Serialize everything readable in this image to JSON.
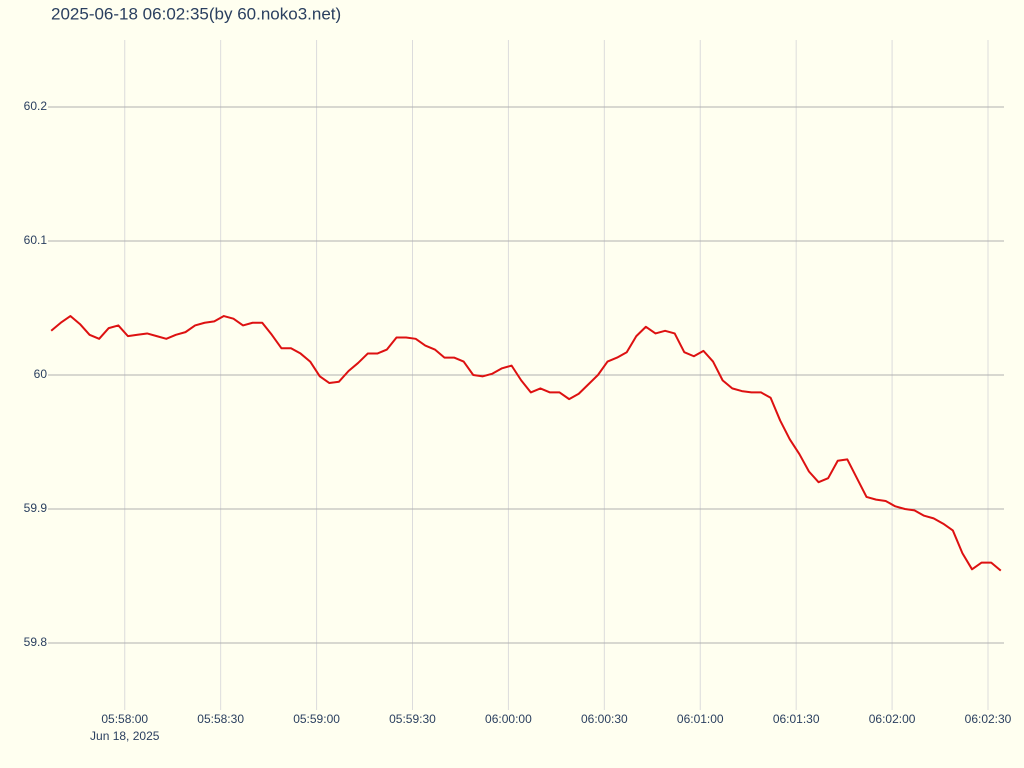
{
  "chart_data": {
    "type": "line",
    "title": "2025-06-18 06:02:35(by 60.noko3.net)",
    "x_date_label": "Jun 18, 2025",
    "x": [
      "2025-06-18T05:57:37",
      "2025-06-18T05:57:40",
      "2025-06-18T05:57:43",
      "2025-06-18T05:57:46",
      "2025-06-18T05:57:49",
      "2025-06-18T05:57:52",
      "2025-06-18T05:57:55",
      "2025-06-18T05:57:58",
      "2025-06-18T05:58:01",
      "2025-06-18T05:58:04",
      "2025-06-18T05:58:07",
      "2025-06-18T05:58:10",
      "2025-06-18T05:58:13",
      "2025-06-18T05:58:16",
      "2025-06-18T05:58:19",
      "2025-06-18T05:58:22",
      "2025-06-18T05:58:25",
      "2025-06-18T05:58:28",
      "2025-06-18T05:58:31",
      "2025-06-18T05:58:34",
      "2025-06-18T05:58:37",
      "2025-06-18T05:58:40",
      "2025-06-18T05:58:43",
      "2025-06-18T05:58:46",
      "2025-06-18T05:58:49",
      "2025-06-18T05:58:52",
      "2025-06-18T05:58:55",
      "2025-06-18T05:58:58",
      "2025-06-18T05:59:01",
      "2025-06-18T05:59:04",
      "2025-06-18T05:59:07",
      "2025-06-18T05:59:10",
      "2025-06-18T05:59:13",
      "2025-06-18T05:59:16",
      "2025-06-18T05:59:19",
      "2025-06-18T05:59:22",
      "2025-06-18T05:59:25",
      "2025-06-18T05:59:28",
      "2025-06-18T05:59:31",
      "2025-06-18T05:59:34",
      "2025-06-18T05:59:37",
      "2025-06-18T05:59:40",
      "2025-06-18T05:59:43",
      "2025-06-18T05:59:46",
      "2025-06-18T05:59:49",
      "2025-06-18T05:59:52",
      "2025-06-18T05:59:55",
      "2025-06-18T05:59:58",
      "2025-06-18T06:00:01",
      "2025-06-18T06:00:04",
      "2025-06-18T06:00:07",
      "2025-06-18T06:00:10",
      "2025-06-18T06:00:13",
      "2025-06-18T06:00:16",
      "2025-06-18T06:00:19",
      "2025-06-18T06:00:22",
      "2025-06-18T06:00:25",
      "2025-06-18T06:00:28",
      "2025-06-18T06:00:31",
      "2025-06-18T06:00:34",
      "2025-06-18T06:00:37",
      "2025-06-18T06:00:40",
      "2025-06-18T06:00:43",
      "2025-06-18T06:00:46",
      "2025-06-18T06:00:49",
      "2025-06-18T06:00:52",
      "2025-06-18T06:00:55",
      "2025-06-18T06:00:58",
      "2025-06-18T06:01:01",
      "2025-06-18T06:01:04",
      "2025-06-18T06:01:07",
      "2025-06-18T06:01:10",
      "2025-06-18T06:01:13",
      "2025-06-18T06:01:16",
      "2025-06-18T06:01:19",
      "2025-06-18T06:01:22",
      "2025-06-18T06:01:25",
      "2025-06-18T06:01:28",
      "2025-06-18T06:01:31",
      "2025-06-18T06:01:34",
      "2025-06-18T06:01:37",
      "2025-06-18T06:01:40",
      "2025-06-18T06:01:43",
      "2025-06-18T06:01:46",
      "2025-06-18T06:01:49",
      "2025-06-18T06:01:52",
      "2025-06-18T06:01:55",
      "2025-06-18T06:01:58",
      "2025-06-18T06:02:01",
      "2025-06-18T06:02:04",
      "2025-06-18T06:02:07",
      "2025-06-18T06:02:10",
      "2025-06-18T06:02:13",
      "2025-06-18T06:02:16",
      "2025-06-18T06:02:19",
      "2025-06-18T06:02:22",
      "2025-06-18T06:02:25",
      "2025-06-18T06:02:28",
      "2025-06-18T06:02:31",
      "2025-06-18T06:02:34"
    ],
    "series": [
      {
        "color": "#dd1111",
        "values": [
          60.033,
          60.039,
          60.044,
          60.038,
          60.03,
          60.027,
          60.035,
          60.037,
          60.029,
          60.03,
          60.031,
          60.029,
          60.027,
          60.03,
          60.032,
          60.037,
          60.039,
          60.04,
          60.044,
          60.042,
          60.037,
          60.039,
          60.039,
          60.03,
          60.02,
          60.02,
          60.016,
          60.01,
          59.999,
          59.994,
          59.995,
          60.003,
          60.009,
          60.016,
          60.016,
          60.019,
          60.028,
          60.028,
          60.027,
          60.022,
          60.019,
          60.013,
          60.013,
          60.01,
          60.0,
          59.999,
          60.001,
          60.005,
          60.007,
          59.996,
          59.987,
          59.99,
          59.987,
          59.987,
          59.982,
          59.986,
          59.993,
          60.0,
          60.01,
          60.013,
          60.017,
          60.029,
          60.036,
          60.031,
          60.033,
          60.031,
          60.017,
          60.014,
          60.018,
          60.01,
          59.996,
          59.99,
          59.988,
          59.987,
          59.987,
          59.983,
          59.966,
          59.952,
          59.941,
          59.928,
          59.92,
          59.923,
          59.936,
          59.937,
          59.923,
          59.909,
          59.907,
          59.906,
          59.902,
          59.9,
          59.899,
          59.895,
          59.893,
          59.889,
          59.884,
          59.867,
          59.855,
          59.86,
          59.86,
          59.854
        ]
      }
    ],
    "xlim": [
      "2025-06-18T05:57:36",
      "2025-06-18T06:02:35"
    ],
    "xticks": [
      {
        "value": "2025-06-18T05:58:00",
        "label": "05:58:00"
      },
      {
        "value": "2025-06-18T05:58:30",
        "label": "05:58:30"
      },
      {
        "value": "2025-06-18T05:59:00",
        "label": "05:59:00"
      },
      {
        "value": "2025-06-18T05:59:30",
        "label": "05:59:30"
      },
      {
        "value": "2025-06-18T06:00:00",
        "label": "06:00:00"
      },
      {
        "value": "2025-06-18T06:00:30",
        "label": "06:00:30"
      },
      {
        "value": "2025-06-18T06:01:00",
        "label": "06:01:00"
      },
      {
        "value": "2025-06-18T06:01:30",
        "label": "06:01:30"
      },
      {
        "value": "2025-06-18T06:02:00",
        "label": "06:02:00"
      },
      {
        "value": "2025-06-18T06:02:30",
        "label": "06:02:30"
      }
    ],
    "ylim": [
      59.75,
      60.25
    ],
    "yticks": [
      59.8,
      59.9,
      60,
      60.1,
      60.2
    ],
    "grid": true
  }
}
